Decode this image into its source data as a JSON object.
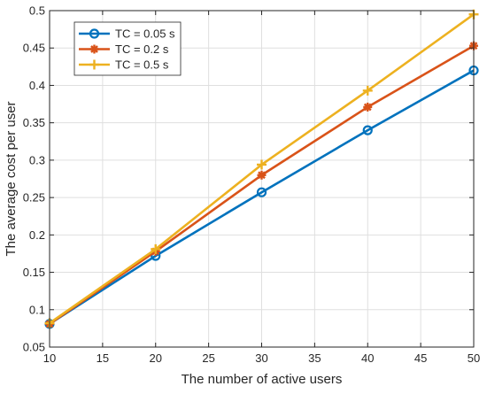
{
  "chart_data": {
    "type": "line",
    "title": "",
    "xlabel": "The number of active users",
    "ylabel": "The average cost per user",
    "x": [
      10,
      20,
      30,
      40,
      50
    ],
    "xlim": [
      10,
      50
    ],
    "ylim": [
      0.05,
      0.5
    ],
    "xticks": [
      10,
      15,
      20,
      25,
      30,
      35,
      40,
      45,
      50
    ],
    "yticks": [
      0.05,
      0.1,
      0.15,
      0.2,
      0.25,
      0.3,
      0.35,
      0.4,
      0.45,
      0.5
    ],
    "xtick_labels": [
      "10",
      "15",
      "20",
      "25",
      "30",
      "35",
      "40",
      "45",
      "50"
    ],
    "ytick_labels": [
      "0.05",
      "0.1",
      "0.15",
      "0.2",
      "0.25",
      "0.3",
      "0.35",
      "0.4",
      "0.45",
      "0.5"
    ],
    "grid": true,
    "legend_position": "top-left",
    "series": [
      {
        "name": "TC = 0.05 s",
        "values": [
          0.081,
          0.172,
          0.257,
          0.34,
          0.42
        ],
        "color": "#0072BD",
        "marker": "circle"
      },
      {
        "name": "TC = 0.2 s",
        "values": [
          0.081,
          0.178,
          0.28,
          0.371,
          0.453
        ],
        "color": "#D95319",
        "marker": "asterisk"
      },
      {
        "name": "TC = 0.5 s",
        "values": [
          0.082,
          0.181,
          0.294,
          0.393,
          0.495
        ],
        "color": "#EDB120",
        "marker": "plus"
      }
    ]
  }
}
